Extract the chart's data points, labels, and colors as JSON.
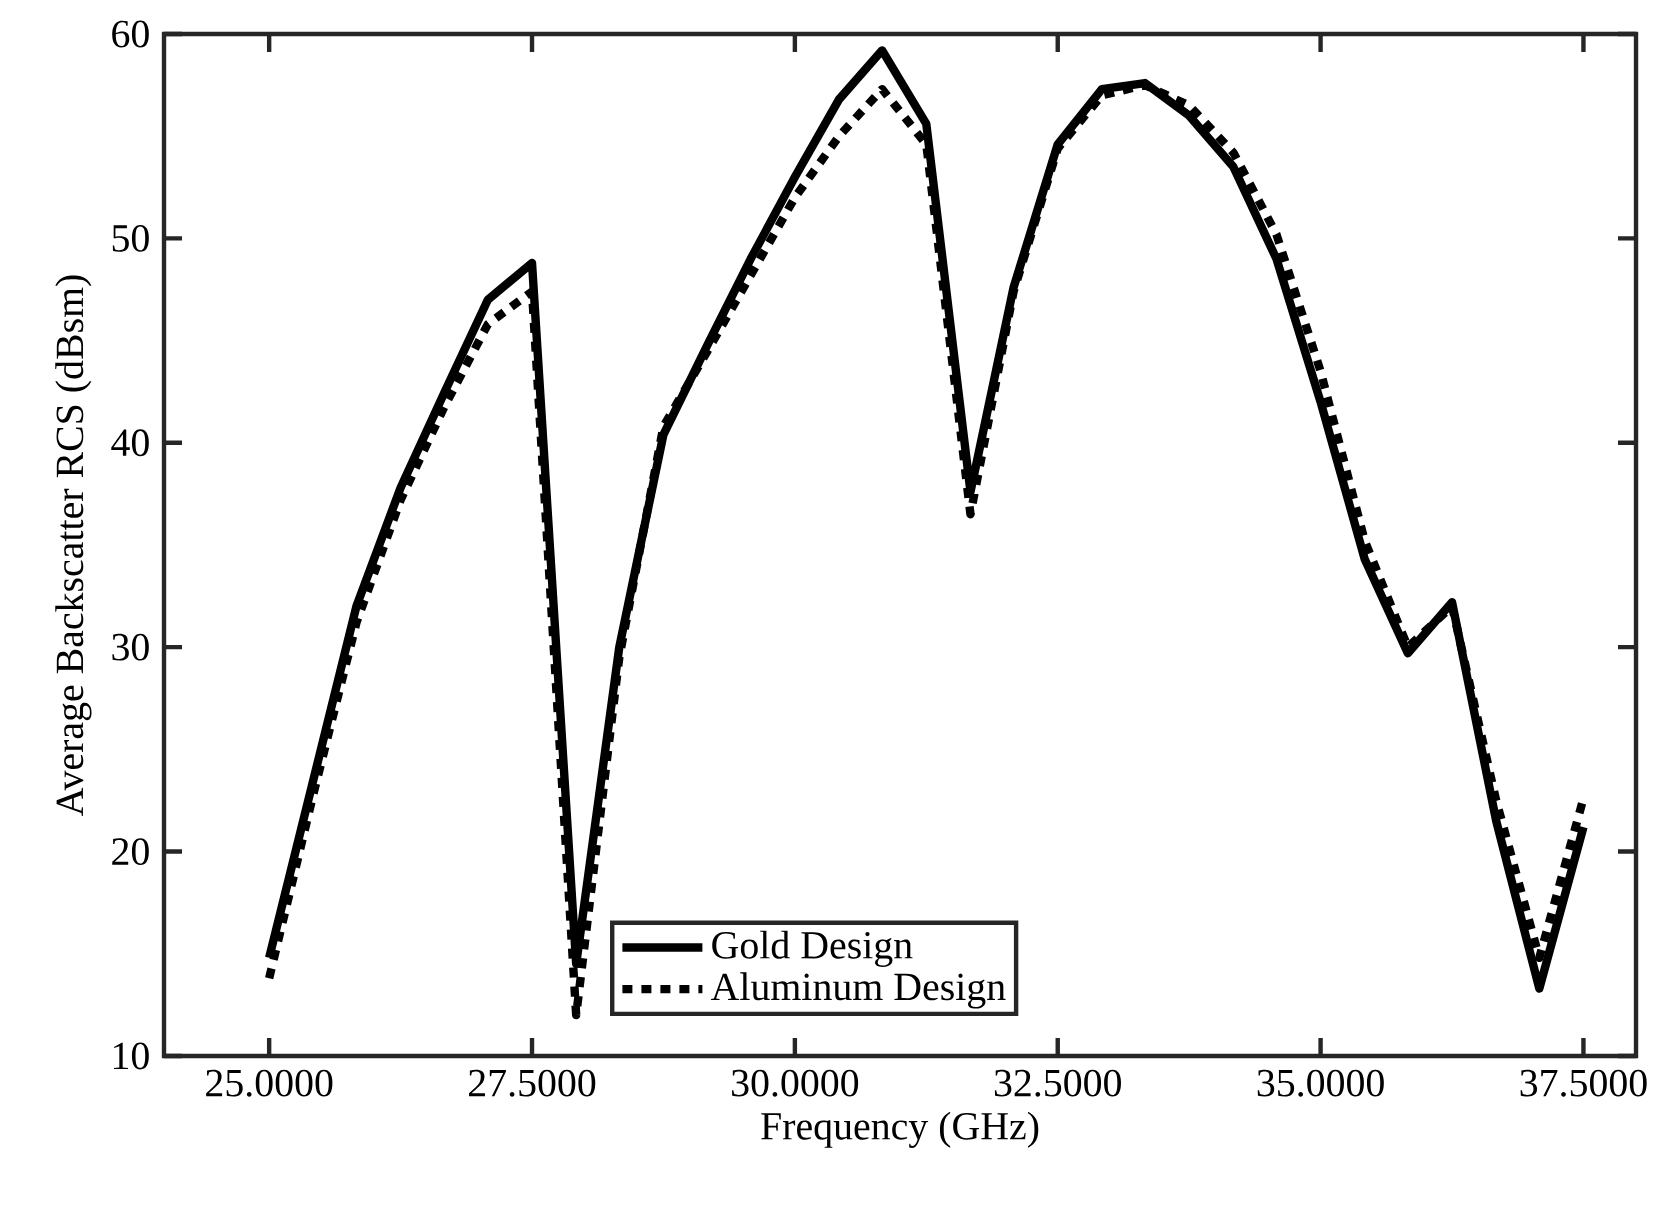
{
  "chart_data": {
    "type": "line",
    "xlabel": "Frequency (GHz)",
    "ylabel": "Average Backscatter RCS (dBsm)",
    "x": [
      25,
      25.42,
      25.83,
      26.25,
      26.67,
      27.08,
      27.5,
      27.92,
      28.33,
      28.75,
      29.17,
      29.58,
      30,
      30.42,
      30.83,
      31.25,
      31.67,
      32.08,
      32.5,
      32.92,
      33.33,
      33.75,
      34.17,
      34.58,
      35,
      35.42,
      35.83,
      36.25,
      36.67,
      37.08,
      37.5
    ],
    "series": [
      {
        "name": "Gold Design",
        "color": "#000000",
        "line_style": "solid",
        "values": [
          14.8,
          23.5,
          32.0,
          37.8,
          42.5,
          47.0,
          48.8,
          14.5,
          30.0,
          40.4,
          44.8,
          49.0,
          53.0,
          56.8,
          59.2,
          55.6,
          37.6,
          47.6,
          54.6,
          57.3,
          57.6,
          56.0,
          53.5,
          49.0,
          42.0,
          34.3,
          29.7,
          32.2,
          21.5,
          13.3,
          21.2
        ]
      },
      {
        "name": "Aluminum Design",
        "color": "#000000",
        "line_style": "dotted",
        "values": [
          13.8,
          22.8,
          31.2,
          37.2,
          41.8,
          45.8,
          47.4,
          12.0,
          29.5,
          40.8,
          44.5,
          48.2,
          52.0,
          55.0,
          57.3,
          54.6,
          36.5,
          47.4,
          54.4,
          57.0,
          57.5,
          56.5,
          54.2,
          50.2,
          43.5,
          35.2,
          30.0,
          32.0,
          22.5,
          14.8,
          22.6
        ]
      }
    ],
    "xlim": [
      24,
      38
    ],
    "ylim": [
      10,
      60
    ],
    "xticks": [
      {
        "value": 25,
        "label": "25.0000"
      },
      {
        "value": 27.5,
        "label": "27.5000"
      },
      {
        "value": 30,
        "label": "30.0000"
      },
      {
        "value": 32.5,
        "label": "32.5000"
      },
      {
        "value": 35,
        "label": "35.0000"
      },
      {
        "value": 37.5,
        "label": "37.5000"
      }
    ],
    "yticks": [
      10,
      20,
      30,
      40,
      50,
      60
    ],
    "grid": false,
    "legend": "bottom"
  }
}
